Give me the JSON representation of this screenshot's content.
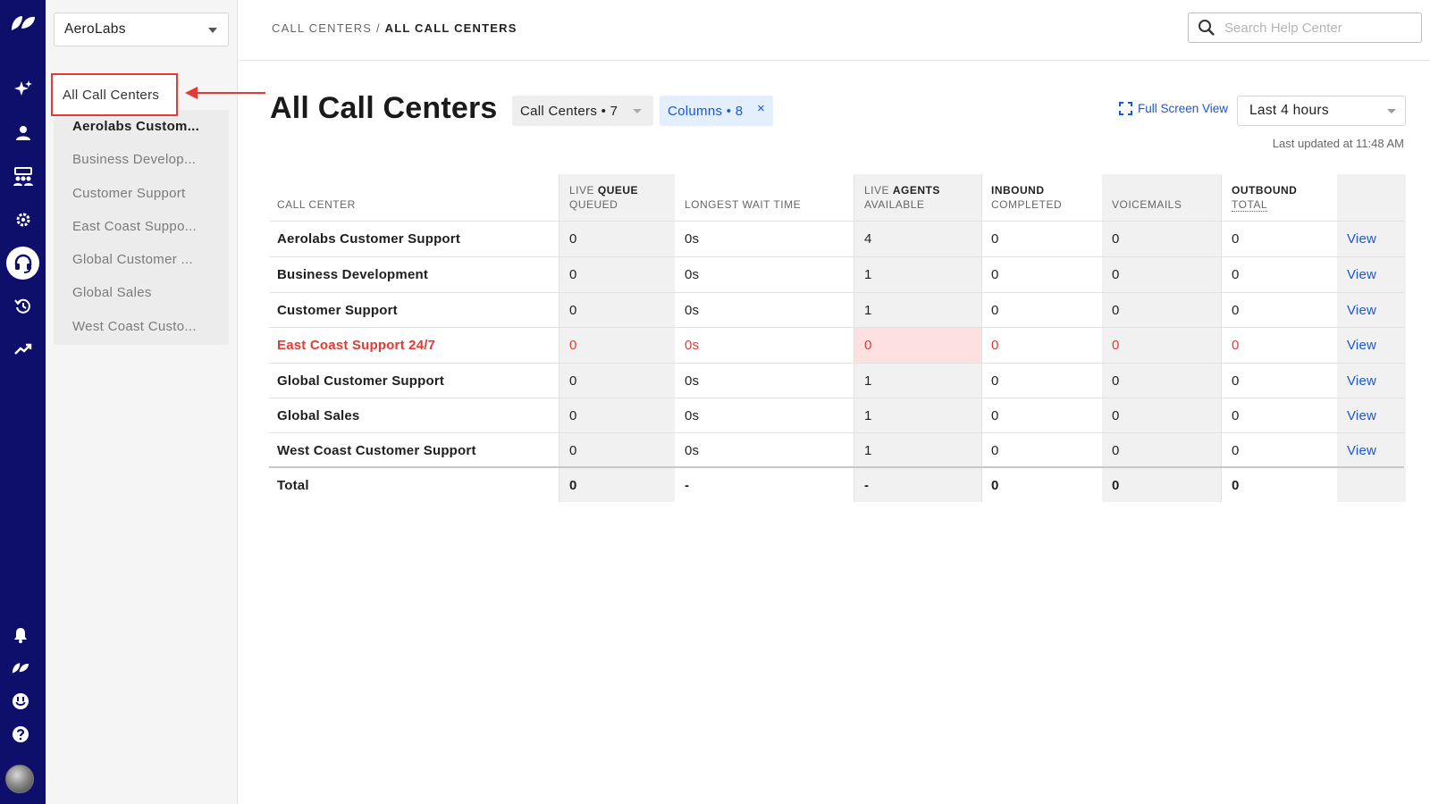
{
  "org": {
    "name": "AeroLabs"
  },
  "sidebar": {
    "all_label": "All Call Centers",
    "items": [
      {
        "label": "Aerolabs Custom...",
        "selected": true
      },
      {
        "label": "Business Develop...",
        "selected": false
      },
      {
        "label": "Customer Support",
        "selected": false
      },
      {
        "label": "East Coast Suppo...",
        "selected": false
      },
      {
        "label": "Global Customer ...",
        "selected": false
      },
      {
        "label": "Global Sales",
        "selected": false
      },
      {
        "label": "West Coast Custo...",
        "selected": false
      }
    ]
  },
  "header": {
    "breadcrumb_root": "CALL CENTERS",
    "breadcrumb_sep": " / ",
    "breadcrumb_current": "ALL CALL CENTERS",
    "search_placeholder": "Search Help Center"
  },
  "main": {
    "title": "All Call Centers",
    "filter_call_centers": "Call Centers • 7",
    "filter_columns": "Columns • 8",
    "filter_columns_clear": "×",
    "full_screen_label": "Full Screen View",
    "time_range": "Last 4 hours",
    "last_updated": "Last updated at 11:48 AM"
  },
  "table": {
    "headers": {
      "call_center": "CALL CENTER",
      "live_queue_prefix": "LIVE",
      "live_queue_group": "QUEUE",
      "queued": "QUEUED",
      "longest_wait": "LONGEST WAIT TIME",
      "live_agents_prefix": "LIVE",
      "live_agents_group": "AGENTS",
      "available": "AVAILABLE",
      "inbound_group": "INBOUND",
      "completed": "COMPLETED",
      "voicemails": "VOICEMAILS",
      "outbound_group": "OUTBOUND",
      "total": "TOTAL"
    },
    "view_label": "View",
    "rows": [
      {
        "name": "Aerolabs Customer Support",
        "queued": "0",
        "longest_wait": "0s",
        "available": "4",
        "completed": "0",
        "voicemails": "0",
        "total": "0"
      },
      {
        "name": "Business Development",
        "queued": "0",
        "longest_wait": "0s",
        "available": "1",
        "completed": "0",
        "voicemails": "0",
        "total": "0"
      },
      {
        "name": "Customer Support",
        "queued": "0",
        "longest_wait": "0s",
        "available": "1",
        "completed": "0",
        "voicemails": "0",
        "total": "0"
      },
      {
        "name": "East Coast Support 24/7",
        "queued": "0",
        "longest_wait": "0s",
        "available": "0",
        "completed": "0",
        "voicemails": "0",
        "total": "0"
      },
      {
        "name": "Global Customer Support",
        "queued": "0",
        "longest_wait": "0s",
        "available": "1",
        "completed": "0",
        "voicemails": "0",
        "total": "0"
      },
      {
        "name": "Global Sales",
        "queued": "0",
        "longest_wait": "0s",
        "available": "1",
        "completed": "0",
        "voicemails": "0",
        "total": "0"
      },
      {
        "name": "West Coast Customer Support",
        "queued": "0",
        "longest_wait": "0s",
        "available": "1",
        "completed": "0",
        "voicemails": "0",
        "total": "0"
      }
    ],
    "total_row": {
      "name": "Total",
      "queued": "0",
      "longest_wait": "-",
      "available": "-",
      "completed": "0",
      "voicemails": "0",
      "total": "0"
    }
  },
  "colors": {
    "rail": "#0e0f6b",
    "accent_blue": "#1a56d6",
    "alert_red": "#e53935",
    "alert_bg": "#fde0e0"
  }
}
